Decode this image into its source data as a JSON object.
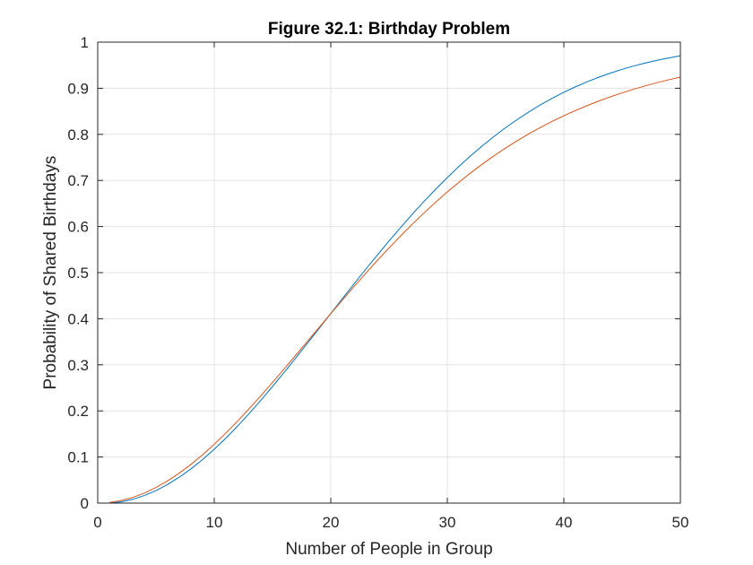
{
  "chart_data": {
    "type": "line",
    "title": "Figure 32.1: Birthday Problem",
    "xlabel": "Number of People in Group",
    "ylabel": "Probability of Shared Birthdays",
    "xlim": [
      0,
      50
    ],
    "ylim": [
      0,
      1
    ],
    "xticks": [
      0,
      10,
      20,
      30,
      40,
      50
    ],
    "xtick_labels": [
      "0",
      "10",
      "20",
      "30",
      "40",
      "50"
    ],
    "yticks": [
      0,
      0.1,
      0.2,
      0.3,
      0.4,
      0.5,
      0.6,
      0.7,
      0.8,
      0.9,
      1
    ],
    "ytick_labels": [
      "0",
      "0.1",
      "0.2",
      "0.3",
      "0.4",
      "0.5",
      "0.6",
      "0.7",
      "0.8",
      "0.9",
      "1"
    ],
    "grid": true,
    "legend": "none",
    "x": [
      1,
      2,
      3,
      4,
      5,
      6,
      7,
      8,
      9,
      10,
      11,
      12,
      13,
      14,
      15,
      16,
      17,
      18,
      19,
      20,
      21,
      22,
      23,
      24,
      25,
      26,
      27,
      28,
      29,
      30,
      31,
      32,
      33,
      34,
      35,
      36,
      37,
      38,
      39,
      40,
      41,
      42,
      43,
      44,
      45,
      46,
      47,
      48,
      49,
      50
    ],
    "series": [
      {
        "color": "#0072BD",
        "values": [
          0,
          0.0027,
          0.0082,
          0.0164,
          0.0271,
          0.0405,
          0.0562,
          0.0743,
          0.0946,
          0.1169,
          0.1411,
          0.167,
          0.1944,
          0.2231,
          0.2529,
          0.2836,
          0.315,
          0.3469,
          0.3791,
          0.4114,
          0.4437,
          0.4757,
          0.5073,
          0.5383,
          0.5687,
          0.5982,
          0.6269,
          0.6545,
          0.681,
          0.7063,
          0.7305,
          0.7533,
          0.775,
          0.7953,
          0.8144,
          0.8322,
          0.8487,
          0.8641,
          0.8782,
          0.8912,
          0.9032,
          0.914,
          0.9239,
          0.9329,
          0.941,
          0.9483,
          0.9548,
          0.9606,
          0.9658,
          0.9704
        ]
      },
      {
        "color": "#D95319",
        "values": [
          0.0014,
          0.0055,
          0.0123,
          0.0218,
          0.0339,
          0.0483,
          0.0651,
          0.084,
          0.1049,
          0.1277,
          0.1521,
          0.1779,
          0.2049,
          0.2329,
          0.2618,
          0.2912,
          0.321,
          0.3511,
          0.3811,
          0.4111,
          0.4407,
          0.4699,
          0.4985,
          0.5265,
          0.5536,
          0.5798,
          0.6052,
          0.6295,
          0.6528,
          0.675,
          0.6962,
          0.7163,
          0.7353,
          0.7533,
          0.7703,
          0.7862,
          0.8011,
          0.8151,
          0.8282,
          0.8404,
          0.8518,
          0.8624,
          0.8723,
          0.8815,
          0.89,
          0.898,
          0.9053,
          0.9121,
          0.9184,
          0.9242
        ]
      }
    ]
  }
}
